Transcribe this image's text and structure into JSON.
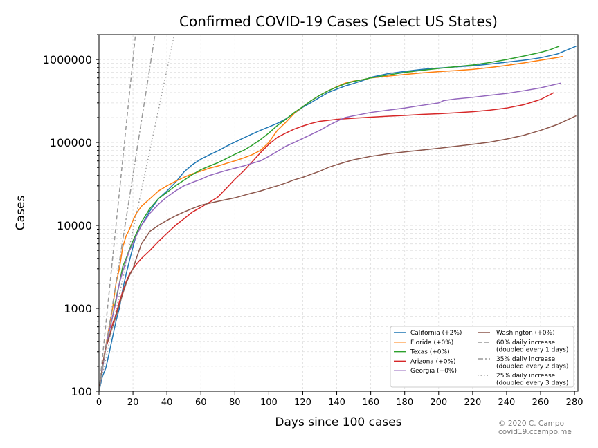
{
  "chart_data": {
    "type": "line",
    "title": "Confirmed COVID-19 Cases (Select US States)",
    "xlabel": "Days since 100 cases",
    "ylabel": "Cases",
    "xlim": [
      0,
      282
    ],
    "ylim": [
      100,
      2000000
    ],
    "yscale": "log",
    "grid": true,
    "legend_position": "bottom-right",
    "x_ticks": [
      0,
      20,
      40,
      60,
      80,
      100,
      120,
      140,
      160,
      180,
      200,
      220,
      240,
      260,
      280
    ],
    "x_tick_labels": [
      "0",
      "20",
      "40",
      "60",
      "80",
      "100",
      "120",
      "140",
      "160",
      "180",
      "200",
      "220",
      "240",
      "260",
      "280"
    ],
    "y_ticks": [
      100,
      1000,
      10000,
      100000,
      1000000
    ],
    "y_tick_labels": [
      "100",
      "1000",
      "10000",
      "100000",
      "1000000"
    ],
    "series": [
      {
        "name": "California (+2%)",
        "color": "#1f77b4",
        "style": "solid",
        "x": [
          0,
          2,
          4,
          6,
          8,
          10,
          12,
          14,
          16,
          18,
          20,
          22,
          25,
          30,
          35,
          40,
          45,
          50,
          55,
          60,
          65,
          70,
          75,
          80,
          85,
          90,
          95,
          100,
          105,
          110,
          115,
          120,
          125,
          130,
          135,
          140,
          145,
          150,
          155,
          160,
          170,
          180,
          190,
          200,
          210,
          220,
          230,
          240,
          250,
          260,
          270,
          281
        ],
        "y": [
          100,
          150,
          190,
          290,
          450,
          700,
          1000,
          1700,
          2600,
          3800,
          5500,
          7700,
          10000,
          15000,
          21000,
          26000,
          33000,
          44000,
          54000,
          63000,
          71000,
          79000,
          90000,
          101000,
          113000,
          126000,
          140000,
          154000,
          170000,
          192000,
          225000,
          266000,
          304000,
          350000,
          400000,
          440000,
          480000,
          515000,
          555000,
          610000,
          675000,
          720000,
          760000,
          790000,
          815000,
          840000,
          880000,
          930000,
          980000,
          1050000,
          1170000,
          1450000
        ]
      },
      {
        "name": "Florida (+0%)",
        "color": "#ff7f0e",
        "style": "solid",
        "x": [
          0,
          2,
          4,
          6,
          8,
          10,
          12,
          14,
          16,
          18,
          20,
          22,
          25,
          30,
          35,
          40,
          45,
          50,
          55,
          60,
          65,
          70,
          75,
          80,
          85,
          90,
          95,
          100,
          105,
          110,
          115,
          120,
          125,
          130,
          135,
          140,
          145,
          150,
          155,
          160,
          170,
          180,
          190,
          200,
          210,
          220,
          230,
          240,
          250,
          260,
          270,
          273
        ],
        "y": [
          100,
          200,
          350,
          600,
          1000,
          2000,
          3000,
          5500,
          7500,
          9000,
          11500,
          14000,
          17000,
          21000,
          26000,
          30000,
          34000,
          38000,
          42000,
          45000,
          49000,
          52000,
          56000,
          60000,
          65000,
          71000,
          80000,
          100000,
          140000,
          175000,
          225000,
          270000,
          320000,
          370000,
          420000,
          470000,
          520000,
          550000,
          570000,
          600000,
          630000,
          660000,
          690000,
          715000,
          735000,
          760000,
          800000,
          850000,
          910000,
          980000,
          1060000,
          1090000
        ]
      },
      {
        "name": "Texas (+0%)",
        "color": "#2ca02c",
        "style": "solid",
        "x": [
          0,
          2,
          4,
          6,
          8,
          10,
          12,
          14,
          16,
          18,
          20,
          22,
          25,
          30,
          35,
          40,
          45,
          50,
          55,
          60,
          65,
          70,
          75,
          80,
          85,
          90,
          95,
          100,
          105,
          110,
          115,
          120,
          125,
          130,
          135,
          140,
          145,
          150,
          155,
          160,
          170,
          180,
          190,
          200,
          210,
          220,
          230,
          240,
          250,
          260,
          265,
          270,
          271
        ],
        "y": [
          100,
          190,
          330,
          520,
          800,
          1300,
          2000,
          3200,
          4000,
          5200,
          6500,
          8000,
          11000,
          16000,
          21000,
          25000,
          30000,
          35000,
          41000,
          47000,
          52000,
          57000,
          64000,
          72000,
          80000,
          92000,
          108000,
          130000,
          160000,
          190000,
          230000,
          270000,
          320000,
          370000,
          420000,
          465000,
          510000,
          545000,
          570000,
          600000,
          650000,
          700000,
          740000,
          780000,
          820000,
          860000,
          920000,
          1000000,
          1100000,
          1220000,
          1300000,
          1420000,
          1450000
        ]
      },
      {
        "name": "Arizona (+0%)",
        "color": "#d62728",
        "style": "solid",
        "x": [
          0,
          2,
          4,
          6,
          8,
          10,
          12,
          14,
          16,
          18,
          20,
          22,
          25,
          30,
          35,
          40,
          45,
          50,
          55,
          60,
          65,
          70,
          75,
          80,
          85,
          90,
          95,
          100,
          105,
          110,
          115,
          120,
          125,
          130,
          140,
          150,
          160,
          170,
          180,
          190,
          200,
          210,
          220,
          230,
          240,
          250,
          260,
          268
        ],
        "y": [
          100,
          200,
          330,
          450,
          650,
          850,
          1200,
          1600,
          2100,
          2600,
          3000,
          3400,
          4000,
          5000,
          6400,
          8000,
          10000,
          12000,
          14500,
          16500,
          19000,
          22000,
          28000,
          36000,
          45000,
          58000,
          75000,
          95000,
          115000,
          130000,
          145000,
          158000,
          170000,
          180000,
          190000,
          196000,
          202000,
          207000,
          212000,
          218000,
          222000,
          228000,
          235000,
          245000,
          260000,
          285000,
          330000,
          400000
        ]
      },
      {
        "name": "Georgia (+0%)",
        "color": "#9467bd",
        "style": "solid",
        "x": [
          0,
          2,
          4,
          6,
          8,
          10,
          12,
          14,
          16,
          18,
          20,
          22,
          25,
          30,
          35,
          40,
          45,
          50,
          55,
          60,
          65,
          70,
          75,
          80,
          85,
          90,
          95,
          100,
          105,
          110,
          115,
          120,
          125,
          130,
          135,
          140,
          145,
          150,
          160,
          170,
          180,
          190,
          200,
          203,
          210,
          220,
          230,
          240,
          250,
          260,
          272
        ],
        "y": [
          100,
          180,
          350,
          520,
          800,
          1200,
          2000,
          2800,
          3800,
          5000,
          6000,
          7500,
          10000,
          14000,
          18000,
          22000,
          26000,
          30000,
          33000,
          36000,
          40000,
          43000,
          46000,
          49000,
          52000,
          56000,
          60000,
          68000,
          78000,
          90000,
          100000,
          112000,
          125000,
          140000,
          160000,
          180000,
          200000,
          210000,
          230000,
          245000,
          260000,
          280000,
          300000,
          320000,
          335000,
          350000,
          370000,
          390000,
          420000,
          455000,
          520000
        ]
      },
      {
        "name": "Washington (+0%)",
        "color": "#8c564b",
        "style": "solid",
        "x": [
          0,
          2,
          4,
          6,
          8,
          10,
          12,
          14,
          16,
          18,
          20,
          22,
          25,
          30,
          35,
          40,
          45,
          50,
          55,
          60,
          65,
          70,
          75,
          80,
          85,
          90,
          95,
          100,
          105,
          110,
          115,
          120,
          125,
          130,
          135,
          140,
          145,
          150,
          160,
          170,
          180,
          190,
          200,
          210,
          220,
          230,
          240,
          250,
          260,
          270,
          281
        ],
        "y": [
          100,
          200,
          350,
          450,
          600,
          800,
          1100,
          1500,
          2000,
          2500,
          3000,
          4000,
          6000,
          8500,
          10000,
          11500,
          13000,
          14500,
          16000,
          17500,
          18500,
          19500,
          20500,
          21500,
          23000,
          24500,
          26000,
          28000,
          30000,
          32500,
          35500,
          38000,
          41500,
          45000,
          50000,
          54000,
          58000,
          62000,
          68000,
          73000,
          77000,
          81000,
          85000,
          90000,
          95000,
          101000,
          110000,
          122000,
          140000,
          165000,
          210000
        ]
      },
      {
        "name": "60% daily increase\n(doubled every 1 days)",
        "color": "#999999",
        "style": "dashed",
        "x": [
          0,
          21.5
        ],
        "y": [
          100,
          2000000
        ]
      },
      {
        "name": "35% daily increase\n(doubled every 2 days)",
        "color": "#999999",
        "style": "dashdot",
        "x": [
          0,
          33
        ],
        "y": [
          100,
          2000000
        ]
      },
      {
        "name": "25% daily increase\n(doubled every 3 days)",
        "color": "#999999",
        "style": "dotted",
        "x": [
          0,
          44.4
        ],
        "y": [
          100,
          2000000
        ]
      }
    ],
    "credit_lines": [
      "© 2020 C. Campo",
      "covid19.ccampo.me"
    ]
  }
}
